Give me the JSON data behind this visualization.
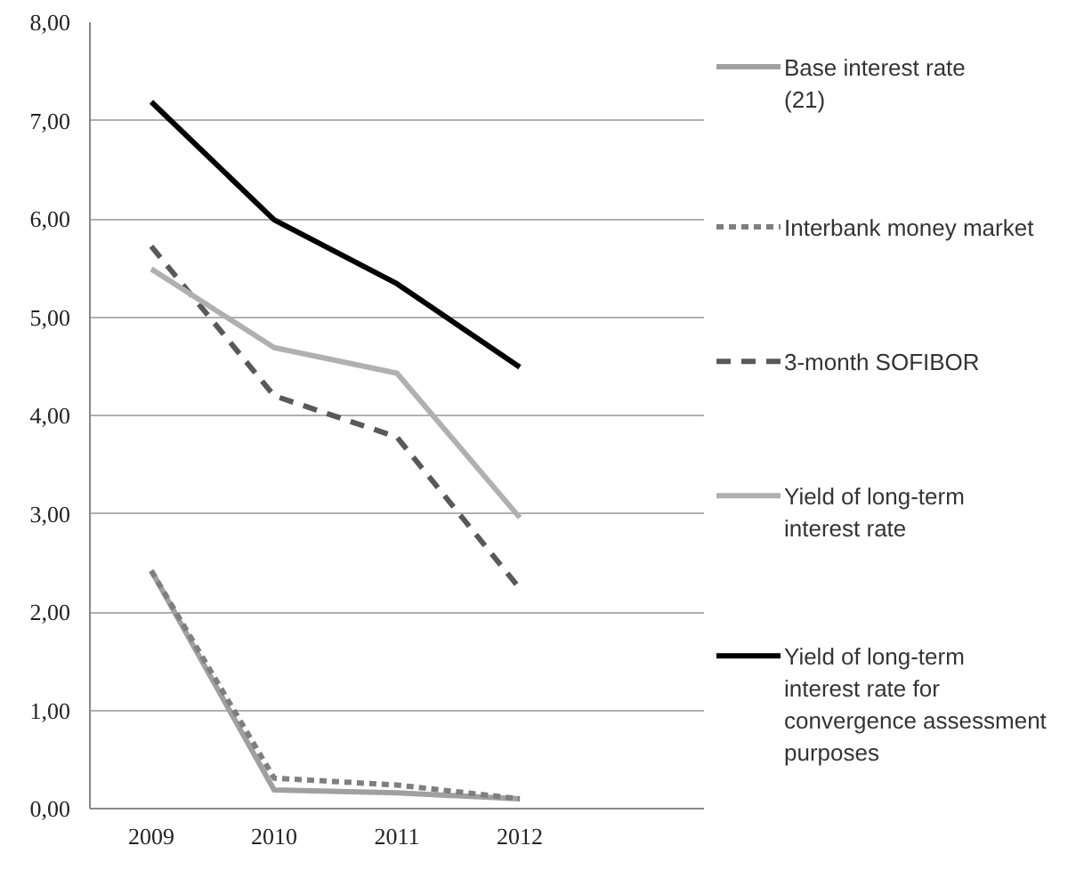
{
  "chart_data": {
    "type": "line",
    "categories": [
      "2009",
      "2010",
      "2011",
      "2012",
      null
    ],
    "series": [
      {
        "name": "Base interest rate (21)",
        "color": "#a0a0a0",
        "line_style": "solid",
        "values": [
          2.42,
          0.19,
          0.16,
          0.1,
          null
        ]
      },
      {
        "name": "Interbank money market",
        "color": "#7f7f7f",
        "line_style": "dotted",
        "values": [
          2.42,
          0.31,
          0.24,
          0.1,
          null
        ]
      },
      {
        "name": "3-month SOFIBOR",
        "color": "#595959",
        "line_style": "dashed",
        "values": [
          5.72,
          4.2,
          3.78,
          2.24,
          null
        ]
      },
      {
        "name": "Yield of long-term interest rate",
        "color": "#b0b0b0",
        "line_style": "solid",
        "values": [
          5.49,
          4.69,
          4.43,
          2.96,
          null
        ]
      },
      {
        "name": "Yield of long-term interest rate for convergence assessment purposes",
        "color": "#000000",
        "line_style": "solid",
        "values": [
          7.19,
          5.99,
          5.34,
          4.49,
          null
        ]
      }
    ],
    "ylim": [
      0,
      8
    ],
    "yticks": [
      {
        "value": 0,
        "label": "0,00"
      },
      {
        "value": 1,
        "label": "1,00"
      },
      {
        "value": 2,
        "label": "2,00"
      },
      {
        "value": 3,
        "label": "3,00"
      },
      {
        "value": 4,
        "label": "4,00"
      },
      {
        "value": 5,
        "label": "5,00"
      },
      {
        "value": 6,
        "label": "6,00"
      },
      {
        "value": 7,
        "label": "7,00"
      },
      {
        "value": 8,
        "label": "8,00"
      }
    ],
    "grid": "y",
    "legend": "right",
    "marker": "none"
  }
}
